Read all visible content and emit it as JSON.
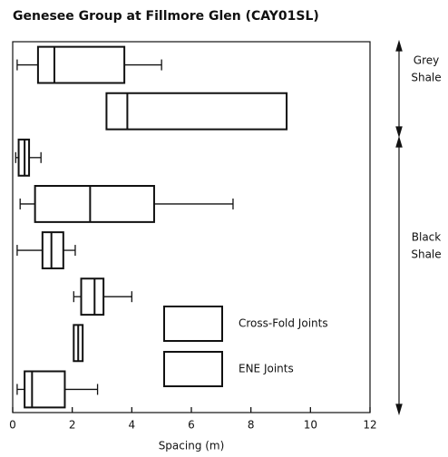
{
  "chart_data": {
    "type": "box",
    "title": "Genesee Group at Fillmore Glen (CAY01SL)",
    "xlabel": "Spacing (m)",
    "xlim": [
      0,
      12
    ],
    "xticks": [
      0,
      2,
      4,
      6,
      8,
      10,
      12
    ],
    "boxes": [
      {
        "min": 0.15,
        "q1": 0.85,
        "median": 1.4,
        "q3": 3.75,
        "max": 5.0
      },
      {
        "q1": 3.15,
        "median": 3.85,
        "q3": 9.2
      },
      {
        "min": 0.1,
        "q1": 0.2,
        "median": 0.4,
        "q3": 0.55,
        "max": 0.95
      },
      {
        "min": 0.25,
        "q1": 0.75,
        "median": 2.6,
        "q3": 4.75,
        "max": 7.4
      },
      {
        "min": 0.15,
        "q1": 1.0,
        "median": 1.3,
        "q3": 1.7,
        "max": 2.1
      },
      {
        "min": 2.05,
        "q1": 2.3,
        "median": 2.75,
        "q3": 3.05,
        "max": 4.0
      },
      {
        "q1": 2.05,
        "median": 2.2,
        "q3": 2.35
      },
      {
        "min": 0.15,
        "q1": 0.4,
        "median": 0.65,
        "q3": 1.75,
        "max": 2.85
      }
    ],
    "legend": [
      "Cross-Fold Joints",
      "ENE Joints"
    ],
    "groups": [
      {
        "lines": [
          "Grey",
          "Shale"
        ]
      },
      {
        "lines": [
          "Black",
          "Shale"
        ]
      }
    ]
  }
}
